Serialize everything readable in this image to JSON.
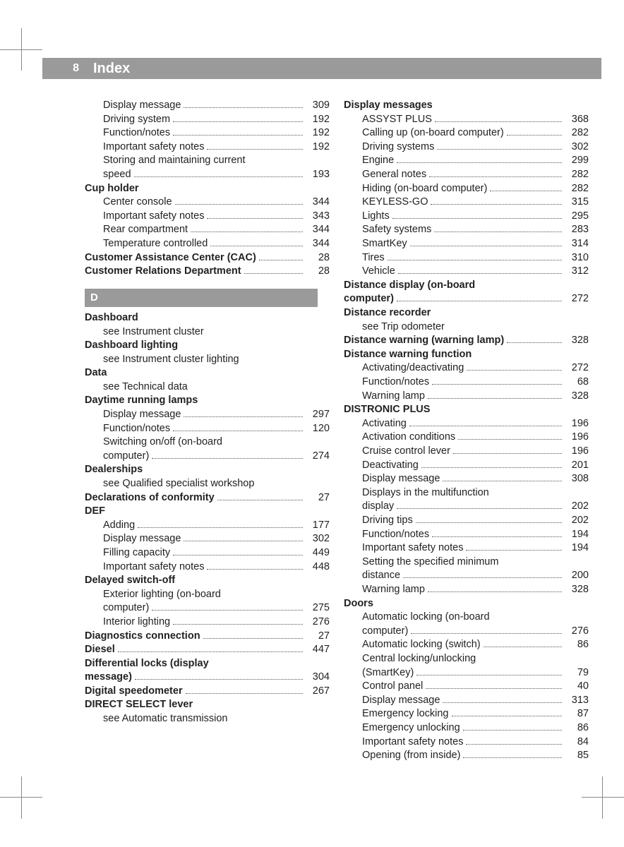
{
  "page_number": "8",
  "title": "Index",
  "colors": {
    "bar_bg": "#9a9a9a",
    "bar_text": "#ffffff",
    "text": "#222222",
    "dots": "#555555",
    "page_bg": "#ffffff"
  },
  "left_column": {
    "pre_section_subs": [
      {
        "label": "Display message",
        "page": "309"
      },
      {
        "label": "Driving system",
        "page": "192"
      },
      {
        "label": "Function/notes",
        "page": "192"
      },
      {
        "label": "Important safety notes",
        "page": "192"
      },
      {
        "label_line1": "Storing and maintaining current",
        "label_line2": "speed",
        "page": "193"
      }
    ],
    "cup_holder": {
      "heading": "Cup holder",
      "subs": [
        {
          "label": "Center console",
          "page": "344"
        },
        {
          "label": "Important safety notes",
          "page": "343"
        },
        {
          "label": "Rear compartment",
          "page": "344"
        },
        {
          "label": "Temperature controlled",
          "page": "344"
        }
      ]
    },
    "cac": {
      "label": "Customer Assistance Center (CAC)",
      "page": "28"
    },
    "crd": {
      "label": "Customer Relations Department",
      "page": "28"
    },
    "section_letter": "D",
    "dashboard": {
      "heading": "Dashboard",
      "see": "see Instrument cluster"
    },
    "dashboard_lighting": {
      "heading": "Dashboard lighting",
      "see": "see Instrument cluster lighting"
    },
    "data": {
      "heading": "Data",
      "see": "see Technical data"
    },
    "daytime": {
      "heading": "Daytime running lamps",
      "subs": [
        {
          "label": "Display message",
          "page": "297"
        },
        {
          "label": "Function/notes",
          "page": "120"
        },
        {
          "label_line1": "Switching on/off (on-board",
          "label_line2": "computer)",
          "page": "274"
        }
      ]
    },
    "dealerships": {
      "heading": "Dealerships",
      "see": "see Qualified specialist workshop"
    },
    "decl_conformity": {
      "label": "Declarations of conformity",
      "page": "27"
    },
    "def": {
      "heading": "DEF",
      "subs": [
        {
          "label": "Adding",
          "page": "177"
        },
        {
          "label": "Display message",
          "page": "302"
        },
        {
          "label": "Filling capacity",
          "page": "449"
        },
        {
          "label": "Important safety notes",
          "page": "448"
        }
      ]
    },
    "delayed": {
      "heading": "Delayed switch-off",
      "subs": [
        {
          "label_line1": "Exterior lighting (on-board",
          "label_line2": "computer)",
          "page": "275"
        },
        {
          "label": "Interior lighting",
          "page": "276"
        }
      ]
    },
    "diagnostics": {
      "label": "Diagnostics connection",
      "page": "27"
    },
    "diesel": {
      "label": "Diesel",
      "page": "447"
    },
    "diff_locks": {
      "label_line1": "Differential locks (display",
      "label_line2": "message)",
      "page": "304"
    },
    "digital_speedo": {
      "label": "Digital speedometer",
      "page": "267"
    },
    "direct_select": {
      "heading": "DIRECT SELECT lever",
      "see": "see Automatic transmission"
    }
  },
  "right_column": {
    "display_messages": {
      "heading": "Display messages",
      "subs": [
        {
          "label": "ASSYST PLUS",
          "page": "368"
        },
        {
          "label": "Calling up (on-board computer)",
          "page": "282"
        },
        {
          "label": "Driving systems",
          "page": "302"
        },
        {
          "label": "Engine",
          "page": "299"
        },
        {
          "label": "General notes",
          "page": "282"
        },
        {
          "label": "Hiding (on-board computer)",
          "page": "282"
        },
        {
          "label": "KEYLESS-GO",
          "page": "315"
        },
        {
          "label": "Lights",
          "page": "295"
        },
        {
          "label": "Safety systems",
          "page": "283"
        },
        {
          "label": "SmartKey",
          "page": "314"
        },
        {
          "label": "Tires",
          "page": "310"
        },
        {
          "label": "Vehicle",
          "page": "312"
        }
      ]
    },
    "distance_display": {
      "label_line1": "Distance display (on-board",
      "label_line2": "computer)",
      "page": "272"
    },
    "distance_recorder": {
      "heading": "Distance recorder",
      "see": "see Trip odometer"
    },
    "distance_warning_lamp": {
      "label": "Distance warning (warning lamp)",
      "page": "328"
    },
    "distance_warning_func": {
      "heading": "Distance warning function",
      "subs": [
        {
          "label": "Activating/deactivating",
          "page": "272"
        },
        {
          "label": "Function/notes",
          "page": "68"
        },
        {
          "label": "Warning lamp",
          "page": "328"
        }
      ]
    },
    "distronic": {
      "heading": "DISTRONIC PLUS",
      "subs": [
        {
          "label": "Activating",
          "page": "196"
        },
        {
          "label": "Activation conditions",
          "page": "196"
        },
        {
          "label": "Cruise control lever",
          "page": "196"
        },
        {
          "label": "Deactivating",
          "page": "201"
        },
        {
          "label": "Display message",
          "page": "308"
        },
        {
          "label_line1": "Displays in the multifunction",
          "label_line2": "display",
          "page": "202"
        },
        {
          "label": "Driving tips",
          "page": "202"
        },
        {
          "label": "Function/notes",
          "page": "194"
        },
        {
          "label": "Important safety notes",
          "page": "194"
        },
        {
          "label_line1": "Setting the specified minimum",
          "label_line2": "distance",
          "page": "200"
        },
        {
          "label": "Warning lamp",
          "page": "328"
        }
      ]
    },
    "doors": {
      "heading": "Doors",
      "subs": [
        {
          "label_line1": "Automatic locking (on-board",
          "label_line2": "computer)",
          "page": "276"
        },
        {
          "label": "Automatic locking (switch)",
          "page": "86"
        },
        {
          "label_line1": "Central locking/unlocking",
          "label_line2": "(SmartKey)",
          "page": "79"
        },
        {
          "label": "Control panel",
          "page": "40"
        },
        {
          "label": "Display message",
          "page": "313"
        },
        {
          "label": "Emergency locking",
          "page": "87"
        },
        {
          "label": "Emergency unlocking",
          "page": "86"
        },
        {
          "label": "Important safety notes",
          "page": "84"
        },
        {
          "label": "Opening (from inside)",
          "page": "85"
        }
      ]
    }
  }
}
